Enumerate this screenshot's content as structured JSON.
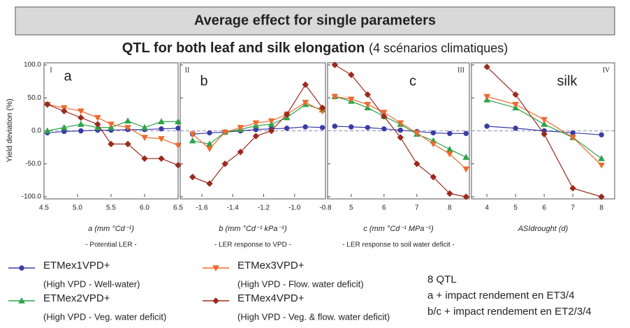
{
  "chart_data": {
    "title": "Average effect for single parameters",
    "subtitle": "QTL  for both leaf and silk elongation",
    "subtitle_note": "(4  scénarios climatiques)",
    "ylabel": "Yield deviation (%)",
    "ylim": [
      -100,
      100
    ],
    "yticks": [
      {
        "value": 100,
        "label": "100.0"
      },
      {
        "value": 50,
        "label": "50.0"
      },
      {
        "value": 0,
        "label": "0.0"
      },
      {
        "value": -50,
        "label": "-50.0"
      },
      {
        "value": -100,
        "label": "-100.0"
      }
    ],
    "legend": [
      {
        "name": "ETMex1VPD+",
        "description": "(High VPD - Well-water)",
        "color": "#3b3ba6",
        "marker": "circle"
      },
      {
        "name": "ETMex2VPD+",
        "description": "(High VPD - Veg. water deficit)",
        "color": "#2ea34a",
        "marker": "triangle-up"
      },
      {
        "name": "ETMex3VPD+",
        "description": "(High VPD - Flow. water deficit)",
        "color": "#ee6a2e",
        "marker": "triangle-down"
      },
      {
        "name": "ETMex4VPD+",
        "description": "(High VPD - Veg. & flow. water deficit)",
        "color": "#9b2a1e",
        "marker": "diamond"
      }
    ],
    "panels": [
      {
        "type": "line",
        "numeral": "I",
        "label": "a",
        "xlabel": "a (mm °Cd⁻¹)",
        "xsublabel": "- Potential LER -",
        "x": [
          4.55,
          4.8,
          5.05,
          5.3,
          5.5,
          5.75,
          6.0,
          6.25,
          6.5
        ],
        "xlim": [
          4.5,
          6.5
        ],
        "xticks": [
          4.5,
          {
            "value": 5,
            "label": "5.0"
          },
          5.5,
          {
            "value": 6,
            "label": "6.0"
          },
          6.5
        ],
        "series": [
          {
            "values": [
              -3,
              -1,
              0,
              1,
              1,
              2,
              2,
              3,
              4
            ]
          },
          {
            "values": [
              0,
              5,
              10,
              5,
              5,
              15,
              5,
              14,
              14
            ]
          },
          {
            "values": [
              40,
              35,
              30,
              20,
              10,
              5,
              -10,
              -12,
              -22
            ]
          },
          {
            "values": [
              40,
              30,
              20,
              10,
              -20,
              -20,
              -42,
              -42,
              -52
            ]
          }
        ]
      },
      {
        "type": "line",
        "numeral": "II",
        "label": "b",
        "xlabel": "b (mm °Cd⁻¹ kPa⁻¹)",
        "xsublabel": "- LER response to VPD -",
        "x": [
          -1.66,
          -1.55,
          -1.45,
          -1.35,
          -1.25,
          -1.15,
          -1.05,
          -0.93,
          -0.82
        ],
        "xlim": [
          -1.74,
          -0.8
        ],
        "xticks": [
          -1.6,
          -1.4,
          -1.2,
          {
            "value": -1,
            "label": "-1.0"
          },
          -0.8
        ],
        "series": [
          {
            "values": [
              -5,
              -3,
              -2,
              0,
              2,
              3,
              4,
              6,
              5
            ]
          },
          {
            "values": [
              -15,
              -20,
              -2,
              2,
              8,
              10,
              20,
              40,
              32
            ]
          },
          {
            "values": [
              -5,
              -27,
              -2,
              5,
              12,
              15,
              25,
              43,
              30
            ]
          },
          {
            "values": [
              -70,
              -80,
              -50,
              -32,
              -8,
              0,
              25,
              70,
              35
            ]
          }
        ]
      },
      {
        "type": "line",
        "numeral": "III",
        "label": "c",
        "xlabel": "c (mm °Cd⁻¹ MPa⁻¹)",
        "xsublabel": "- LER response to soil water deficit -",
        "x": [
          4.5,
          5,
          5.5,
          6,
          6.5,
          7,
          7.5,
          8,
          8.5
        ],
        "xlim": [
          4.28,
          8.6
        ],
        "xticks": [
          5,
          6,
          7,
          8
        ],
        "series": [
          {
            "values": [
              7,
              6,
              5,
              3,
              1,
              -1,
              -3,
              -4,
              -4
            ]
          },
          {
            "values": [
              52,
              45,
              35,
              22,
              10,
              -5,
              -15,
              -28,
              -40
            ]
          },
          {
            "values": [
              52,
              48,
              40,
              28,
              12,
              -3,
              -20,
              -35,
              -58
            ]
          },
          {
            "values": [
              100,
              85,
              55,
              22,
              -10,
              -50,
              -70,
              -95,
              -100
            ]
          }
        ]
      },
      {
        "type": "line",
        "numeral": "IV",
        "label": "silk",
        "xlabel": "ASIdrought (d)",
        "xsublabel": null,
        "x": [
          4,
          5,
          6,
          7,
          8
        ],
        "xlim": [
          3.46,
          8.46
        ],
        "xticks": [
          4,
          5,
          6,
          7,
          8
        ],
        "series": [
          {
            "values": [
              7,
              4,
              0,
              -3,
              -6
            ]
          },
          {
            "values": [
              47,
              35,
              10,
              -10,
              -42
            ]
          },
          {
            "values": [
              52,
              40,
              17,
              -10,
              -52
            ]
          },
          {
            "values": [
              97,
              55,
              -5,
              -87,
              -100
            ]
          }
        ]
      }
    ],
    "notes": [
      "8 QTL",
      "a + impact rendement en ET3/4",
      "b/c + impact rendement en ET2/3/4"
    ]
  }
}
